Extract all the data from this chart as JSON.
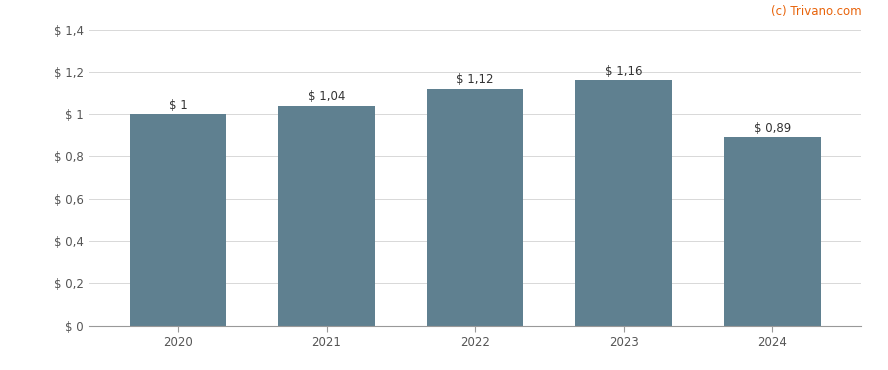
{
  "categories": [
    "2020",
    "2021",
    "2022",
    "2023",
    "2024"
  ],
  "values": [
    1.0,
    1.04,
    1.12,
    1.16,
    0.89
  ],
  "labels": [
    "$ 1",
    "$ 1,04",
    "$ 1,12",
    "$ 1,16",
    "$ 0,89"
  ],
  "bar_color": "#5f8090",
  "background_color": "#ffffff",
  "ylim": [
    0,
    1.4
  ],
  "yticks": [
    0,
    0.2,
    0.4,
    0.6,
    0.8,
    1.0,
    1.2,
    1.4
  ],
  "ytick_labels": [
    "$ 0",
    "$ 0,2",
    "$ 0,4",
    "$ 0,6",
    "$ 0,8",
    "$ 1",
    "$ 1,2",
    "$ 1,4"
  ],
  "watermark": "(c) Trivano.com",
  "watermark_color": "#e8630a",
  "grid_color": "#d8d8d8",
  "label_fontsize": 8.5,
  "tick_fontsize": 8.5,
  "bar_width": 0.65
}
